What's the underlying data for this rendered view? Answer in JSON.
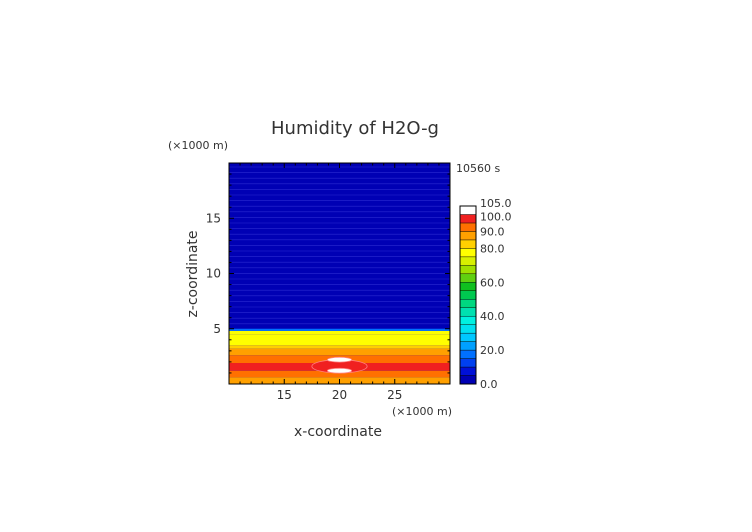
{
  "chart_data": {
    "type": "heatmap",
    "title": "Humidity of H2O-g",
    "time_label": "10560 s",
    "xlabel": "x-coordinate",
    "ylabel": "z-coordinate",
    "x_unit": "(×1000 m)",
    "y_unit": "(×1000 m)",
    "x_range": [
      10,
      30
    ],
    "y_range": [
      0,
      20
    ],
    "x_ticks": [
      {
        "value": 15,
        "label": "15"
      },
      {
        "value": 20,
        "label": "20"
      },
      {
        "value": 25,
        "label": "25"
      }
    ],
    "y_ticks": [
      {
        "value": 5,
        "label": "5"
      },
      {
        "value": 10,
        "label": "10"
      },
      {
        "value": 15,
        "label": "15"
      }
    ],
    "colorbar": {
      "range": [
        0,
        105
      ],
      "labels": [
        {
          "value": 0,
          "label": "0.0"
        },
        {
          "value": 20,
          "label": "20.0"
        },
        {
          "value": 40,
          "label": "40.0"
        },
        {
          "value": 60,
          "label": "60.0"
        },
        {
          "value": 80,
          "label": "80.0"
        },
        {
          "value": 90,
          "label": "90.0"
        },
        {
          "value": 100,
          "label": "100.0"
        },
        {
          "value": 105,
          "label": "105.0"
        }
      ],
      "levels": [
        {
          "from": 0,
          "to": 5,
          "color": "#0000b4"
        },
        {
          "from": 5,
          "to": 10,
          "color": "#0010d8"
        },
        {
          "from": 10,
          "to": 15,
          "color": "#0040f0"
        },
        {
          "from": 15,
          "to": 20,
          "color": "#0070ff"
        },
        {
          "from": 20,
          "to": 25,
          "color": "#00a0ff"
        },
        {
          "from": 25,
          "to": 30,
          "color": "#00c8ff"
        },
        {
          "from": 30,
          "to": 35,
          "color": "#00e0f0"
        },
        {
          "from": 35,
          "to": 40,
          "color": "#00f0e0"
        },
        {
          "from": 40,
          "to": 45,
          "color": "#00e0b0"
        },
        {
          "from": 45,
          "to": 50,
          "color": "#00d880"
        },
        {
          "from": 50,
          "to": 55,
          "color": "#00c850"
        },
        {
          "from": 55,
          "to": 60,
          "color": "#10c020"
        },
        {
          "from": 60,
          "to": 65,
          "color": "#60d010"
        },
        {
          "from": 65,
          "to": 70,
          "color": "#a0e000"
        },
        {
          "from": 70,
          "to": 75,
          "color": "#d8f000"
        },
        {
          "from": 75,
          "to": 80,
          "color": "#ffff00"
        },
        {
          "from": 80,
          "to": 85,
          "color": "#ffd000"
        },
        {
          "from": 85,
          "to": 90,
          "color": "#ffa000"
        },
        {
          "from": 90,
          "to": 95,
          "color": "#ff7000"
        },
        {
          "from": 95,
          "to": 100,
          "color": "#f02020"
        },
        {
          "from": 100,
          "to": 105,
          "color": "#ffffff"
        }
      ]
    },
    "field": {
      "background_value": 2.5,
      "bands": [
        {
          "z_from": 4.8,
          "z_to": 5.0,
          "value": 17.5
        },
        {
          "z_from": 4.5,
          "z_to": 4.8,
          "value": 77.5
        },
        {
          "z_from": 3.5,
          "z_to": 4.5,
          "value": 77.5
        },
        {
          "z_from": 3.2,
          "z_to": 3.5,
          "value": 82.5
        },
        {
          "z_from": 2.6,
          "z_to": 3.2,
          "value": 87.5
        },
        {
          "z_from": 1.9,
          "z_to": 2.6,
          "value": 92.5
        },
        {
          "z_from": 1.2,
          "z_to": 1.9,
          "value": 97.5
        },
        {
          "z_from": 0.6,
          "z_to": 1.2,
          "value": 92.5
        },
        {
          "z_from": 0.0,
          "z_to": 0.6,
          "value": 87.5
        }
      ],
      "blobs": [
        {
          "x": 20.0,
          "z": 1.6,
          "rx": 2.5,
          "rz": 0.6,
          "value": 97.5
        },
        {
          "x": 20.0,
          "z": 2.2,
          "rx": 1.1,
          "rz": 0.22,
          "value": 102.5
        },
        {
          "x": 20.0,
          "z": 1.2,
          "rx": 1.1,
          "rz": 0.22,
          "value": 102.5
        }
      ]
    }
  }
}
